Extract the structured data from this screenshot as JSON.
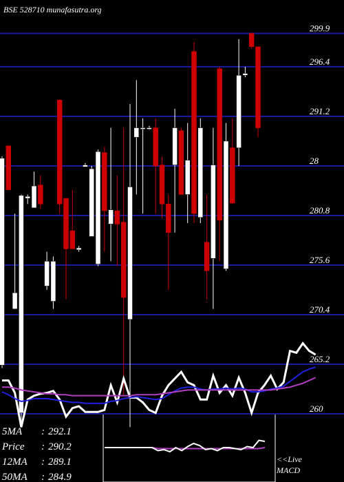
{
  "chart_data": {
    "type": "candlestick",
    "title": "BSE 528710 munafasutra.org",
    "ylim": [
      252.85,
      303.4
    ],
    "yticks": [
      299.9,
      296.4,
      291.2,
      {
        "value": 286,
        "label": "28"
      },
      280.8,
      275.6,
      270.4,
      265.2,
      260
    ],
    "up_color": "#ffffff",
    "down_color": "#cc0000",
    "grid_color": "#1a1aa0",
    "open": [
      265.1,
      288.1,
      271.0,
      260.1,
      282.6,
      281.6,
      284.0,
      273.4,
      271.8,
      292.9,
      282.6,
      279.2,
      277.2,
      285.9,
      278.6,
      275.7,
      287.4,
      279.9,
      281.3,
      280.1,
      269.9,
      289.0,
      289.9,
      289.9,
      290.0,
      286.1,
      282.0,
      286.1,
      289.7,
      283.0,
      298.0,
      280.6,
      278.0,
      276.3,
      296.2,
      275.2,
      287.9,
      287.9,
      295.5,
      299.9,
      298.5,
      null,
      null,
      null,
      null,
      null,
      null,
      null,
      null,
      null
    ],
    "high": [
      287.0,
      288.1,
      281.0,
      283.0,
      283.0,
      285.4,
      285.0,
      277.0,
      276.5,
      293.0,
      282.6,
      283.5,
      277.6,
      286.3,
      286.0,
      287.7,
      288.0,
      290.0,
      285.0,
      290.0,
      292.5,
      295.0,
      291.0,
      290.2,
      291.0,
      287.0,
      283.0,
      292.0,
      290.0,
      290.5,
      299.0,
      291.0,
      283.0,
      290.0,
      296.4,
      290.5,
      291.0,
      299.3,
      296.4,
      300.0,
      298.5,
      null,
      null,
      null,
      null,
      null,
      null,
      null,
      null,
      null
    ],
    "low": [
      264.8,
      283.5,
      271.0,
      258.6,
      282.0,
      281.6,
      281.5,
      273.0,
      271.0,
      281.0,
      272.0,
      277.3,
      277.0,
      285.9,
      278.6,
      275.5,
      277.0,
      276.0,
      275.5,
      262.0,
      258.6,
      283.0,
      281.0,
      289.8,
      281.0,
      280.5,
      273.0,
      279.0,
      283.0,
      280.0,
      280.0,
      280.0,
      272.0,
      271.0,
      276.0,
      275.0,
      282.0,
      286.0,
      295.3,
      298.3,
      289.0,
      null,
      null,
      null,
      null,
      null,
      null,
      null,
      null,
      null
    ],
    "close": [
      286.8,
      283.5,
      272.7,
      282.9,
      282.8,
      283.9,
      282.0,
      276.0,
      276.0,
      282.0,
      277.3,
      277.3,
      277.4,
      286.1,
      285.7,
      287.5,
      281.3,
      281.4,
      279.9,
      272.2,
      283.8,
      290.0,
      290.0,
      290.0,
      286.0,
      282.0,
      279.0,
      290.0,
      283.0,
      286.6,
      281.0,
      290.0,
      275.0,
      286.1,
      280.3,
      288.6,
      282.1,
      295.5,
      295.7,
      298.5,
      290.0,
      null,
      null,
      null,
      null,
      null,
      null,
      null,
      null,
      null
    ],
    "series": [
      {
        "color": "#ffffff",
        "values": [
          263.5,
          263.5,
          262.2,
          258.6,
          261.5,
          261.9,
          262.1,
          262.2,
          262.4,
          261.5,
          259.7,
          260.6,
          260.8,
          260.2,
          260.2,
          260.2,
          260.4,
          263.0,
          261.2,
          263.7,
          261.7,
          261.7,
          261.2,
          260.4,
          260.1,
          261.9,
          263.0,
          263.7,
          264.4,
          263.3,
          263.0,
          261.5,
          261.5,
          264.0,
          262.2,
          263.0,
          261.9,
          263.8,
          262.2,
          260.1,
          262.2,
          263.0,
          264.0,
          262.6,
          263.3,
          266.6,
          266.4,
          267.4,
          266.6,
          266.2
        ]
      },
      {
        "color": "#2020e0",
        "values": [
          262.3,
          262.0,
          261.6,
          261.3,
          261.4,
          261.6,
          261.6,
          261.6,
          261.5,
          261.4,
          261.3,
          261.2,
          261.2,
          261.1,
          261.1,
          261.1,
          261.1,
          261.3,
          261.4,
          261.6,
          261.7,
          261.8,
          261.7,
          261.6,
          261.5,
          261.6,
          262.0,
          262.4,
          262.7,
          262.8,
          262.8,
          262.6,
          262.5,
          262.6,
          262.6,
          262.7,
          262.6,
          262.7,
          262.6,
          262.3,
          262.3,
          262.4,
          262.6,
          262.7,
          262.9,
          263.4,
          263.9,
          264.4,
          264.7,
          264.9
        ]
      },
      {
        "color": "#b040c0",
        "values": [
          262.8,
          262.8,
          262.7,
          262.5,
          262.4,
          262.3,
          262.2,
          262.1,
          262.1,
          262.0,
          262.0,
          261.9,
          261.9,
          261.9,
          261.9,
          261.9,
          261.9,
          261.9,
          261.9,
          261.9,
          261.9,
          262.0,
          262.0,
          262.0,
          262.0,
          262.1,
          262.2,
          262.3,
          262.4,
          262.5,
          262.5,
          262.5,
          262.5,
          262.5,
          262.5,
          262.5,
          262.5,
          262.5,
          262.5,
          262.5,
          262.5,
          262.5,
          262.5,
          262.6,
          262.7,
          262.8,
          263.0,
          263.2,
          263.5,
          263.8
        ]
      }
    ],
    "stats": [
      {
        "label": "5MA",
        "value": "292.1"
      },
      {
        "label": "Price",
        "value": "290.2"
      },
      {
        "label": "12MA",
        "value": "289.1"
      },
      {
        "label": "50MA",
        "value": "284.9"
      }
    ],
    "macd": {
      "title": "MACD",
      "link": "<<Live",
      "ylim": [
        -3,
        3
      ],
      "color": "#ffffff",
      "signal_color": "#b040c0",
      "values": [
        0,
        0,
        0,
        0,
        0,
        0,
        0,
        0,
        0,
        -0.3,
        -0.2,
        -0.4,
        0,
        -0.3,
        0.1,
        0.4,
        0.2,
        -0.2,
        -0.1,
        -0.3,
        0,
        0,
        -0.1,
        -0.2,
        0.1,
        0,
        0.7,
        0.6
      ],
      "signal": [
        0,
        0,
        0,
        0,
        0,
        0,
        0,
        0,
        0,
        -0.1,
        -0.1,
        -0.1,
        -0.1,
        -0.1,
        -0.1,
        -0.1,
        -0.1,
        -0.1,
        -0.1,
        -0.1,
        -0.1,
        -0.1,
        -0.1,
        -0.1,
        -0.1,
        -0.1,
        -0.1,
        0
      ]
    }
  }
}
